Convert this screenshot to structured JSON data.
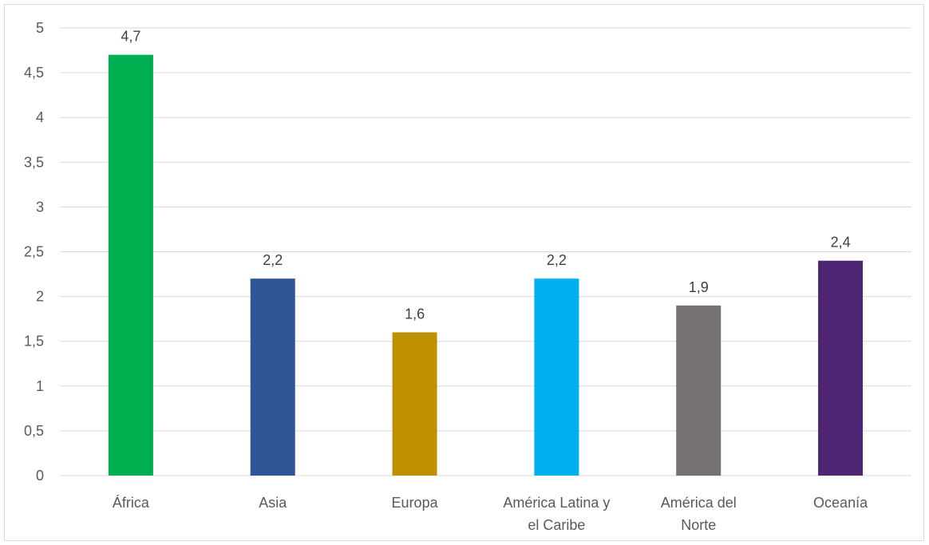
{
  "chart_data": {
    "type": "bar",
    "categories": [
      [
        "África"
      ],
      [
        "Asia"
      ],
      [
        "Europa"
      ],
      [
        "América Latina y",
        "el Caribe"
      ],
      [
        "América del",
        "Norte"
      ],
      [
        "Oceanía"
      ]
    ],
    "values": [
      4.7,
      2.2,
      1.6,
      2.2,
      1.9,
      2.4
    ],
    "data_labels": [
      "4,7",
      "2,2",
      "1,6",
      "2,2",
      "1,9",
      "2,4"
    ],
    "colors": [
      "#00b050",
      "#2f5597",
      "#bf9000",
      "#00b0f0",
      "#767171",
      "#4e2573"
    ],
    "ylim": [
      0,
      5
    ],
    "yticks": [
      {
        "value": 0,
        "label": "0"
      },
      {
        "value": 0.5,
        "label": "0,5"
      },
      {
        "value": 1,
        "label": "1"
      },
      {
        "value": 1.5,
        "label": "1,5"
      },
      {
        "value": 2,
        "label": "2"
      },
      {
        "value": 2.5,
        "label": "2,5"
      },
      {
        "value": 3,
        "label": "3"
      },
      {
        "value": 3.5,
        "label": "3,5"
      },
      {
        "value": 4,
        "label": "4"
      },
      {
        "value": 4.5,
        "label": "4,5"
      },
      {
        "value": 5,
        "label": "5"
      }
    ],
    "grid": true,
    "legend": "none",
    "title": "",
    "xlabel": "",
    "ylabel": ""
  }
}
